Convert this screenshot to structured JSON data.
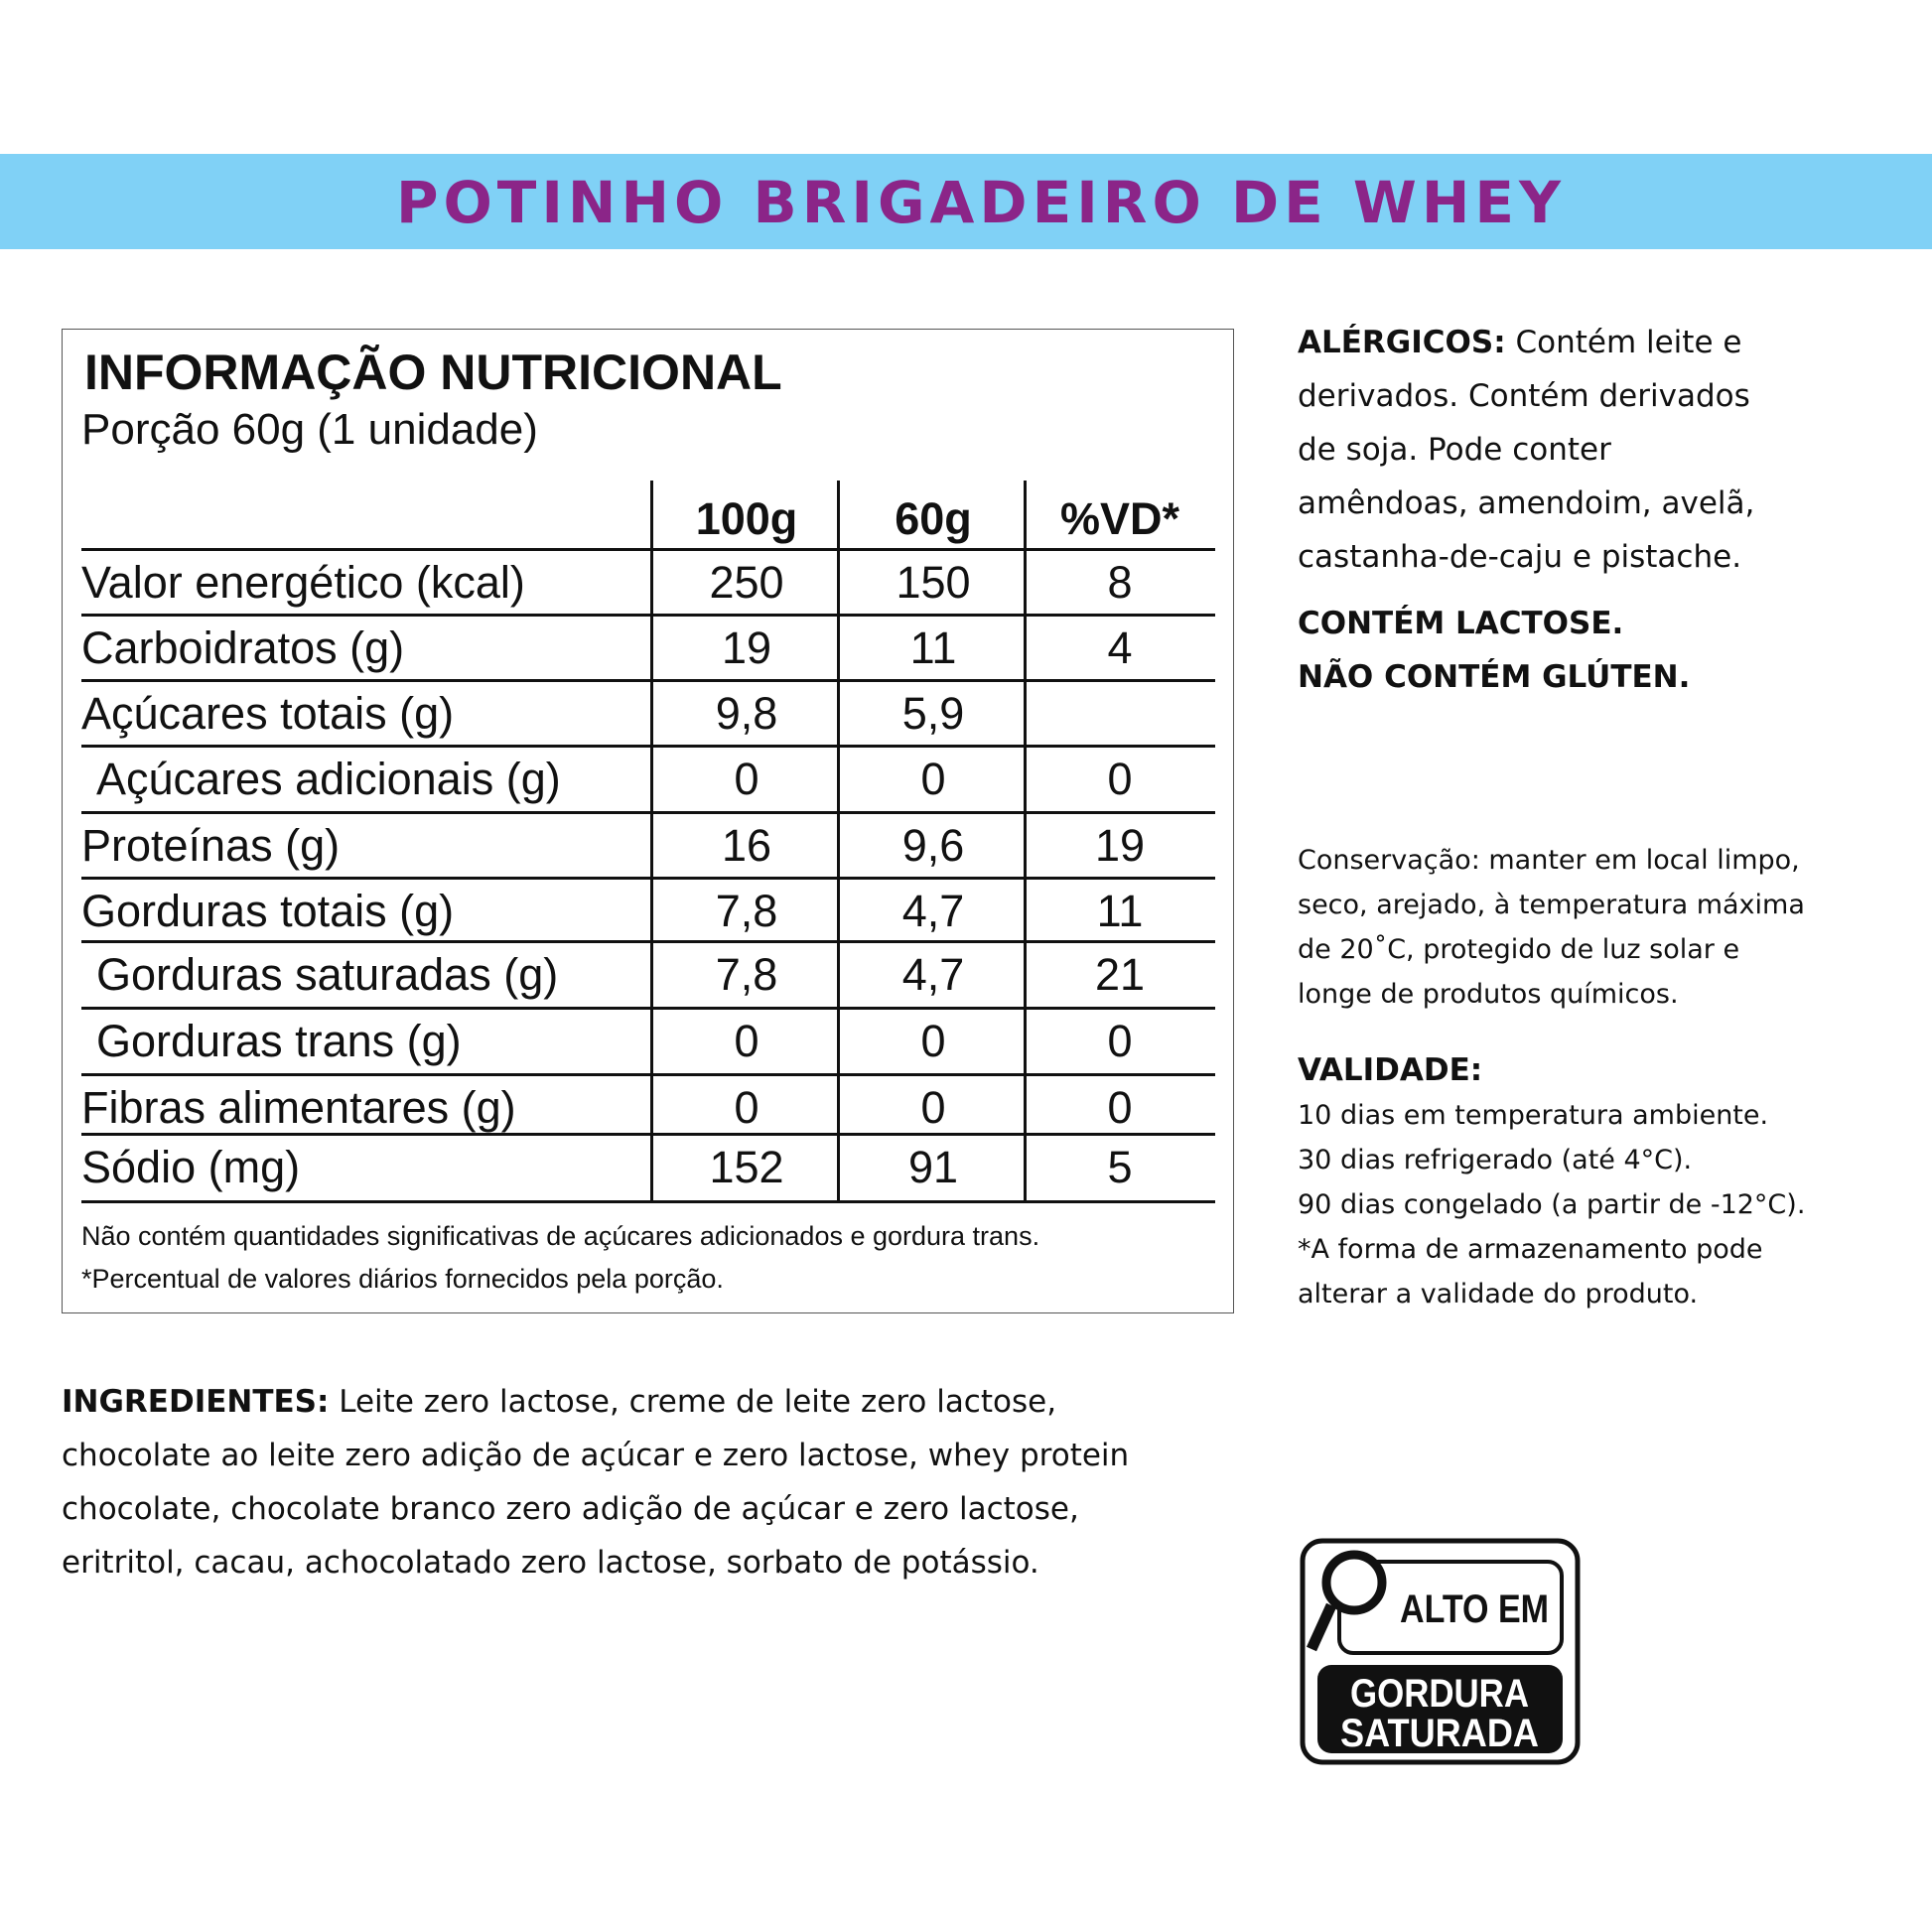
{
  "header": {
    "title": "POTINHO BRIGADEIRO DE WHEY",
    "band_color": "#80d1f6",
    "title_color": "#8b2588"
  },
  "nutrition": {
    "title": "INFORMAÇÃO NUTRICIONAL",
    "portion": "Porção 60g (1 unidade)",
    "columns": [
      "100g",
      "60g",
      "%VD*"
    ],
    "rows": [
      {
        "label": "Valor energético (kcal)",
        "v100": "250",
        "v60": "150",
        "vd": "8",
        "indent": false
      },
      {
        "label": "Carboidratos (g)",
        "v100": "19",
        "v60": "11",
        "vd": "4",
        "indent": false
      },
      {
        "label": "Açúcares totais (g)",
        "v100": "9,8",
        "v60": "5,9",
        "vd": "",
        "indent": false
      },
      {
        "label": "Açúcares adicionais (g)",
        "v100": "0",
        "v60": "0",
        "vd": "0",
        "indent": true
      },
      {
        "label": "Proteínas (g)",
        "v100": "16",
        "v60": "9,6",
        "vd": "19",
        "indent": false
      },
      {
        "label": "Gorduras totais (g)",
        "v100": "7,8",
        "v60": "4,7",
        "vd": "11",
        "indent": false
      },
      {
        "label": "Gorduras saturadas (g)",
        "v100": "7,8",
        "v60": "4,7",
        "vd": "21",
        "indent": true
      },
      {
        "label": "Gorduras trans (g)",
        "v100": "0",
        "v60": "0",
        "vd": "0",
        "indent": true
      },
      {
        "label": "Fibras alimentares (g)",
        "v100": "0",
        "v60": "0",
        "vd": "0",
        "indent": false
      },
      {
        "label": "Sódio (mg)",
        "v100": "152",
        "v60": "91",
        "vd": "5",
        "indent": false
      }
    ],
    "footnotes": [
      "Não contém quantidades significativas de açúcares adicionados e gordura trans.",
      "*Percentual de valores diários fornecidos pela porção."
    ]
  },
  "allergens": {
    "label": "ALÉRGICOS:",
    "lines": [
      " Contém leite e",
      "derivados. Contém derivados",
      "de soja. Pode conter",
      "amêndoas, amendoim, avelã,",
      "castanha-de-caju e pistache."
    ],
    "lactose": "CONTÉM LACTOSE.",
    "gluten": "NÃO CONTÉM GLÚTEN."
  },
  "conservation": {
    "lines": [
      "Conservação: manter em local limpo,",
      "seco, arejado, à temperatura máxima",
      "de 20˚C, protegido de luz solar e",
      "longe de produtos químicos."
    ]
  },
  "validity": {
    "label": "VALIDADE:",
    "lines": [
      "10 dias em temperatura ambiente.",
      "30 dias refrigerado (até 4°C).",
      "90 dias congelado (a partir de -12°C).",
      "*A forma de armazenamento pode",
      "alterar a validade do produto."
    ]
  },
  "ingredients": {
    "label": "INGREDIENTES:",
    "lines": [
      " Leite zero lactose, creme de leite zero lactose,",
      "chocolate ao leite zero adição de açúcar e zero lactose, whey protein",
      "chocolate, chocolate branco zero adição de açúcar e zero lactose,",
      "eritritol, cacau, achocolatado zero lactose, sorbato de potássio."
    ]
  },
  "badge": {
    "top": "ALTO EM",
    "bottom1": "GORDURA",
    "bottom2": "SATURADA",
    "icon": "magnifier-icon"
  }
}
